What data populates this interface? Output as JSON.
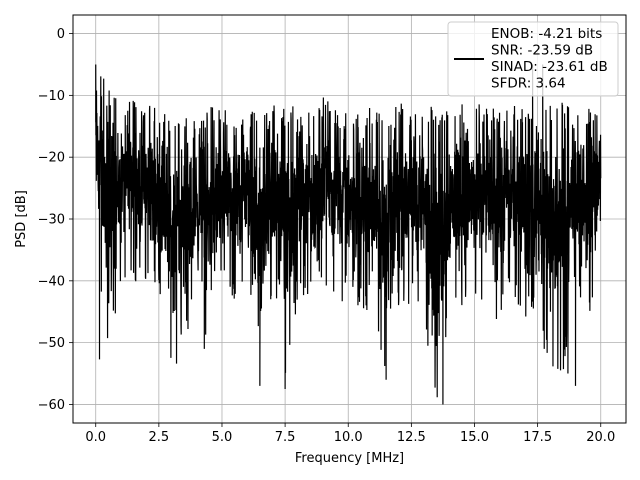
{
  "chart_data": {
    "type": "line",
    "title": "",
    "xlabel": "Frequency [MHz]",
    "ylabel": "PSD [dB]",
    "xlim": [
      -0.9,
      21.0
    ],
    "ylim": [
      -63,
      3
    ],
    "xticks": [
      0.0,
      2.5,
      5.0,
      7.5,
      10.0,
      12.5,
      15.0,
      17.5,
      20.0
    ],
    "xtick_labels": [
      "0.0",
      "2.5",
      "5.0",
      "7.5",
      "10.0",
      "12.5",
      "15.0",
      "17.5",
      "20.0"
    ],
    "yticks": [
      0,
      -10,
      -20,
      -30,
      -40,
      -50,
      -60
    ],
    "ytick_labels": [
      "0",
      "−10",
      "−20",
      "−30",
      "−40",
      "−50",
      "−60"
    ],
    "grid": true,
    "legend_position": "top-right",
    "line_color": "#000000",
    "legend_lines": [
      "ENOB: -4.21 bits",
      "SNR: -23.59 dB",
      "SINAD: -23.61 dB",
      "SFDR: 3.64"
    ],
    "series": [
      {
        "x_start": 0.0,
        "x_end": 20.0,
        "envelope_upper": [
          -5,
          -8,
          -12,
          -10,
          -11,
          -12,
          -13,
          -12,
          -13,
          -12,
          -11,
          -12,
          -13,
          -12,
          -11,
          -12,
          -11,
          -12,
          -10,
          -12,
          -13,
          -12,
          -11,
          -12,
          -11,
          -10,
          -11,
          -12,
          -12,
          -10,
          -11,
          -12,
          -12,
          -11,
          -12,
          -11,
          -10,
          -11,
          -12,
          -12,
          -10
        ],
        "envelope_lower": [
          -35,
          -53,
          -41,
          -40,
          -42,
          -43,
          -53,
          -50,
          -44,
          -51,
          -41,
          -44,
          -41,
          -57,
          -42,
          -57,
          -43,
          -43,
          -40,
          -44,
          -43,
          -45,
          -45,
          -56,
          -45,
          -44,
          -47,
          -60,
          -46,
          -44,
          -46,
          -44,
          -47,
          -42,
          -47,
          -45,
          -57,
          -55,
          -42,
          -47,
          -42
        ],
        "notable_points": [
          {
            "x": 0.0,
            "y": -5
          },
          {
            "x": 0.15,
            "y": -52.7
          },
          {
            "x": 3.2,
            "y": -53.4
          },
          {
            "x": 4.3,
            "y": -51
          },
          {
            "x": 6.5,
            "y": -57
          },
          {
            "x": 7.5,
            "y": -57.5
          },
          {
            "x": 11.5,
            "y": -56
          },
          {
            "x": 13.75,
            "y": -60
          },
          {
            "x": 17.3,
            "y": -5
          },
          {
            "x": 17.7,
            "y": -5
          },
          {
            "x": 18.7,
            "y": -55
          },
          {
            "x": 19.0,
            "y": -57
          }
        ]
      }
    ]
  }
}
